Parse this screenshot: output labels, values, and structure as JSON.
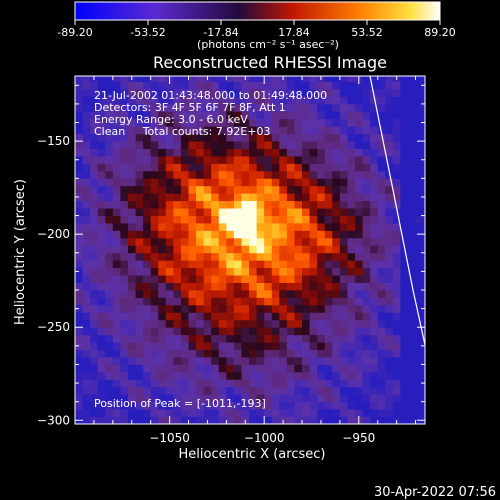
{
  "chart_data": {
    "type": "heatmap",
    "title": "Reconstructed RHESSI Image",
    "xlabel": "Heliocentric X (arcsec)",
    "ylabel": "Heliocentric Y (arcsec)",
    "xlim": [
      -1100,
      -915
    ],
    "ylim": [
      -302,
      -115
    ],
    "x_ticks": [
      -1050,
      -1000,
      -950
    ],
    "y_ticks": [
      -150,
      -200,
      -250,
      -300
    ],
    "colorbar": {
      "ticks": [
        "-89.20",
        "-53.52",
        "-17.84",
        "17.84",
        "53.52",
        "89.20"
      ],
      "range": [
        -89.2,
        89.2
      ],
      "units": "(photons cm⁻² s⁻¹ asec⁻²)"
    },
    "annotations": [
      "21-Jul-2002 01:43:48.000 to 01:49:48.000",
      "Detectors: 3F 4F 5F 6F 7F 8F, Att 1",
      "Energy Range: 3.0 - 6.0 keV",
      "Clean     Total counts: 7.92E+03"
    ],
    "peak_label": "Position of Peak = [-1011,-193]",
    "peak": {
      "x": -1011,
      "y": -193
    },
    "grid_step_arcsec": 4,
    "grid": false,
    "colors": {
      "background": "#000000",
      "text": "#ffffff"
    }
  },
  "footer": {
    "timestamp": "30-Apr-2022 07:56"
  }
}
